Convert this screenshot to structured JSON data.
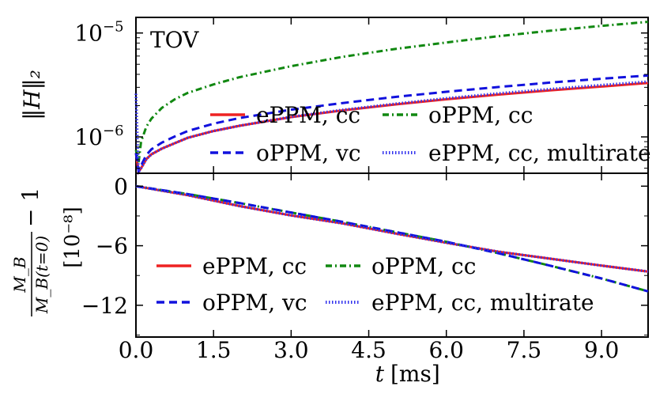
{
  "chart_data": [
    {
      "type": "line",
      "panel": "top",
      "title": "",
      "annotation": "TOV",
      "xlabel": "",
      "ylabel": "‖H‖₂",
      "yscale": "log",
      "xlim": [
        0,
        9.9
      ],
      "ylim_exponent": [
        -6.35,
        -4.85
      ],
      "yticks": [
        {
          "exp": -6,
          "base": "10",
          "sup": "−6"
        },
        {
          "exp": -5,
          "base": "10",
          "sup": "−5"
        }
      ],
      "legend_location": "lower-right",
      "series": [
        {
          "name": "ePPM, cc",
          "style": "solid",
          "color": "#ee2222",
          "x": [
            0.0,
            0.05,
            0.1,
            0.2,
            0.3,
            0.5,
            0.75,
            1.0,
            1.5,
            2.0,
            3.0,
            4.0,
            5.0,
            6.0,
            7.0,
            8.0,
            9.0,
            9.9
          ],
          "y": [
            7e-07,
            4.6e-07,
            5e-07,
            6.1e-07,
            6.8e-07,
            7.7e-07,
            8.7e-07,
            9.8e-07,
            1.14e-06,
            1.28e-06,
            1.55e-06,
            1.8e-06,
            2.05e-06,
            2.3e-06,
            2.55e-06,
            2.8e-06,
            3.05e-06,
            3.3e-06
          ]
        },
        {
          "name": "oPPM, cc",
          "style": "dashdot",
          "color": "#118811",
          "x": [
            0.0,
            0.05,
            0.1,
            0.2,
            0.3,
            0.5,
            0.75,
            1.0,
            1.5,
            2.0,
            3.0,
            4.0,
            5.0,
            6.0,
            7.0,
            8.0,
            9.0,
            9.9
          ],
          "y": [
            7.5e-07,
            5.6e-07,
            9e-07,
            1.25e-06,
            1.5e-06,
            1.9e-06,
            2.3e-06,
            2.65e-06,
            3.2e-06,
            3.75e-06,
            4.8e-06,
            5.9e-06,
            7e-06,
            8.1e-06,
            9.3e-06,
            1.05e-05,
            1.17e-05,
            1.28e-05
          ]
        },
        {
          "name": "oPPM, vc",
          "style": "dashed",
          "color": "#1111dd",
          "x": [
            0.0,
            0.05,
            0.1,
            0.2,
            0.3,
            0.5,
            0.75,
            1.0,
            1.5,
            2.0,
            3.0,
            4.0,
            5.0,
            6.0,
            7.0,
            8.0,
            9.0,
            9.9
          ],
          "y": [
            7e-07,
            4.7e-07,
            5.3e-07,
            6.7e-07,
            7.6e-07,
            8.8e-07,
            1.01e-06,
            1.14e-06,
            1.34e-06,
            1.52e-06,
            1.83e-06,
            2.12e-06,
            2.42e-06,
            2.72e-06,
            3.02e-06,
            3.33e-06,
            3.63e-06,
            3.9e-06
          ]
        },
        {
          "name": "ePPM, cc, multirate",
          "style": "dotted",
          "color": "#3333ee",
          "x": [
            0.0,
            0.05,
            0.1,
            0.2,
            0.3,
            0.5,
            0.75,
            1.0,
            1.5,
            2.0,
            3.0,
            4.0,
            5.0,
            6.0,
            7.0,
            8.0,
            9.0,
            9.9
          ],
          "y": [
            2.6e-06,
            4.6e-07,
            5e-07,
            6.1e-07,
            6.8e-07,
            7.7e-07,
            8.7e-07,
            9.8e-07,
            1.14e-06,
            1.28e-06,
            1.56e-06,
            1.82e-06,
            2.08e-06,
            2.35e-06,
            2.62e-06,
            2.88e-06,
            3.15e-06,
            3.4e-06
          ]
        }
      ]
    },
    {
      "type": "line",
      "panel": "bottom",
      "title": "",
      "xlabel_var": "t",
      "xlabel_unit": "[ms]",
      "ylabel_frac_num": "M_B",
      "ylabel_frac_den": "M_B(t=0)",
      "ylabel_suffix": "− 1",
      "ylabel_unit": "[10⁻⁸]",
      "xlim": [
        0,
        9.9
      ],
      "ylim": [
        -15.2,
        1.3
      ],
      "xticks": [
        "0.0",
        "1.5",
        "3.0",
        "4.5",
        "6.0",
        "7.5",
        "9.0"
      ],
      "yticks": [
        "0",
        "−6",
        "−12"
      ],
      "legend_location": "lower-right",
      "series": [
        {
          "name": "ePPM, cc",
          "style": "solid",
          "color": "#ee2222",
          "x": [
            0,
            1,
            2,
            3,
            4,
            5,
            6,
            7,
            8,
            9,
            9.9
          ],
          "y": [
            0,
            -0.9,
            -2.0,
            -2.95,
            -3.75,
            -4.75,
            -5.7,
            -6.6,
            -7.3,
            -8.0,
            -8.6
          ]
        },
        {
          "name": "oPPM, cc",
          "style": "dashdot",
          "color": "#118811",
          "x": [
            0,
            1,
            2,
            3,
            4,
            5,
            6,
            7,
            8,
            9,
            9.9
          ],
          "y": [
            0,
            -0.8,
            -1.7,
            -2.65,
            -3.6,
            -4.6,
            -5.6,
            -6.75,
            -8.0,
            -9.3,
            -10.6
          ]
        },
        {
          "name": "oPPM, vc",
          "style": "dashed",
          "color": "#1111dd",
          "x": [
            0,
            1,
            2,
            3,
            4,
            5,
            6,
            7,
            8,
            9,
            9.9
          ],
          "y": [
            0,
            -0.8,
            -1.7,
            -2.65,
            -3.6,
            -4.6,
            -5.6,
            -6.75,
            -8.0,
            -9.3,
            -10.6
          ]
        },
        {
          "name": "ePPM, cc, multirate",
          "style": "dotted",
          "color": "#3333ee",
          "x": [
            0,
            1,
            2,
            3,
            4,
            5,
            6,
            7,
            8,
            9,
            9.9
          ],
          "y": [
            0,
            -0.9,
            -2.0,
            -2.95,
            -3.75,
            -4.75,
            -5.7,
            -6.6,
            -7.3,
            -8.0,
            -8.6
          ]
        }
      ]
    }
  ]
}
